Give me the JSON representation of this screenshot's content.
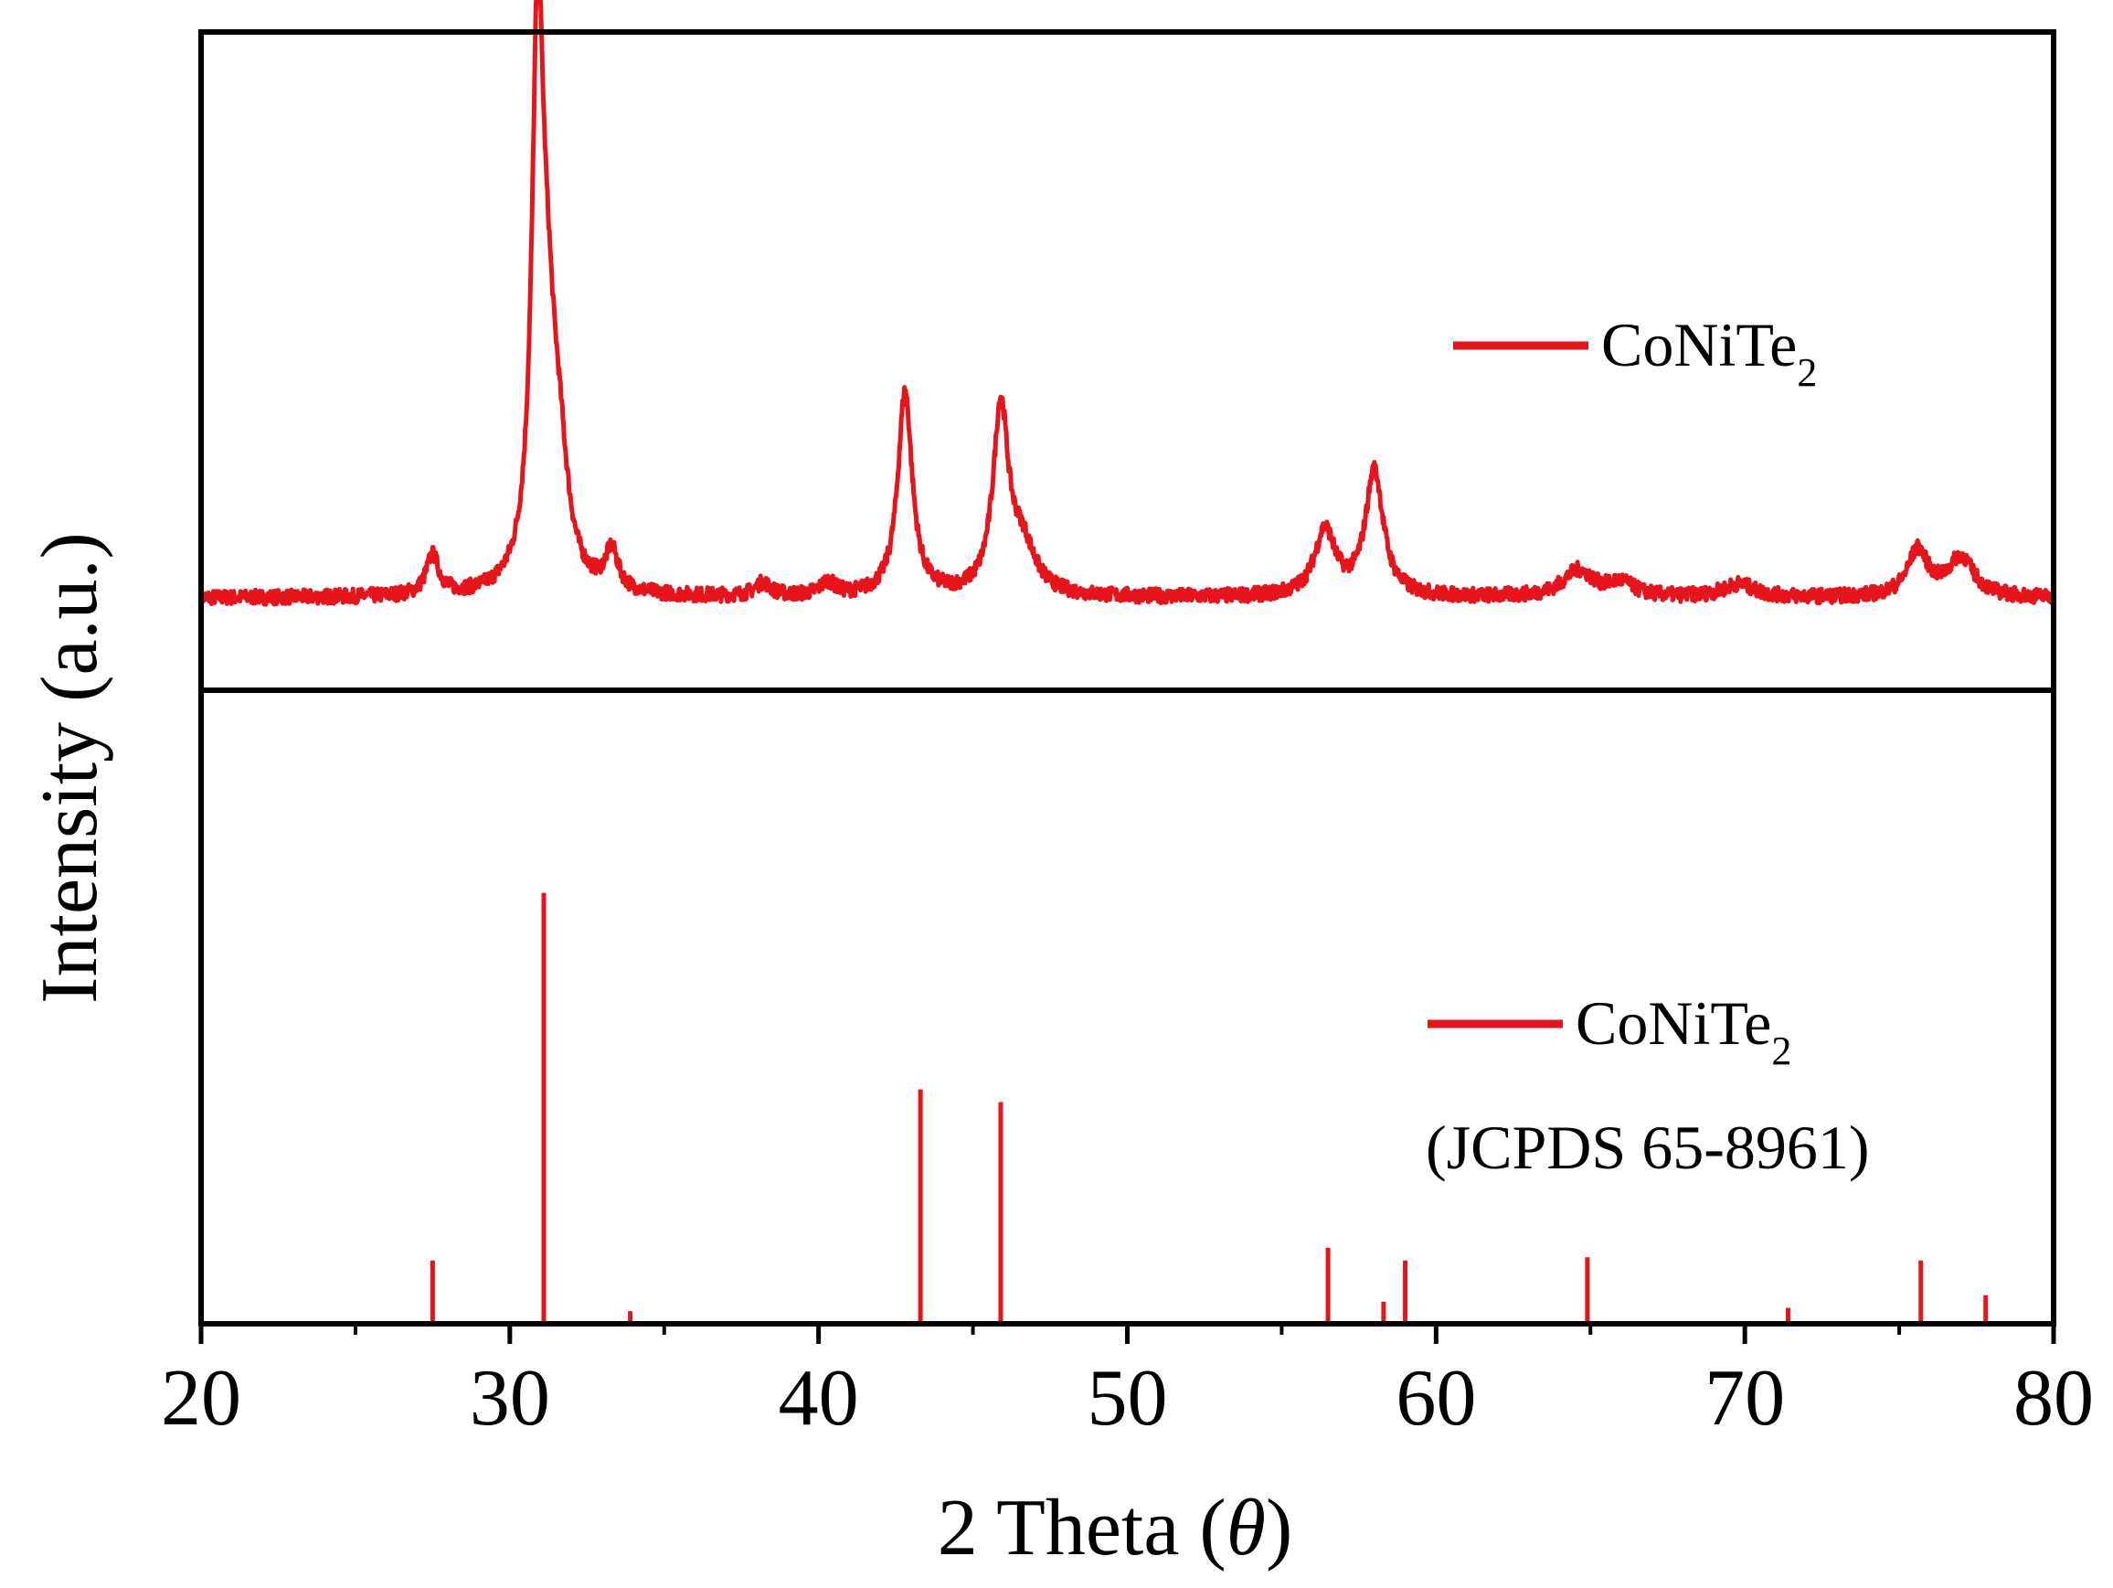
{
  "chart_data": {
    "type": "line",
    "xlabel_prefix": "2 Theta (",
    "xlabel_symbol": "θ",
    "xlabel_suffix": ")",
    "ylabel": "Intensity (a.u.)",
    "xlim": [
      20,
      80
    ],
    "x_ticks": [
      "20",
      "30",
      "40",
      "50",
      "60",
      "70",
      "80"
    ],
    "grid": false,
    "legend_placement": "top-right",
    "series_color": "#e8141c",
    "panels": [
      {
        "kind": "pattern",
        "legend": {
          "main": "CoNiTe",
          "sub": "2"
        },
        "baseline": 0.14,
        "peaks": [
          {
            "x": 27.5,
            "height": 0.06,
            "width": 0.25
          },
          {
            "x": 30.9,
            "height": 0.76,
            "width": 0.22
          },
          {
            "x": 31.2,
            "height": 0.3,
            "width": 0.35
          },
          {
            "x": 31.6,
            "height": 0.14,
            "width": 0.35
          },
          {
            "x": 33.3,
            "height": 0.06,
            "width": 0.25
          },
          {
            "x": 38.2,
            "height": 0.02,
            "width": 0.3
          },
          {
            "x": 40.3,
            "height": 0.02,
            "width": 0.3
          },
          {
            "x": 42.8,
            "height": 0.31,
            "width": 0.28
          },
          {
            "x": 45.9,
            "height": 0.28,
            "width": 0.3
          },
          {
            "x": 46.6,
            "height": 0.07,
            "width": 0.5
          },
          {
            "x": 56.4,
            "height": 0.1,
            "width": 0.4
          },
          {
            "x": 58.0,
            "height": 0.19,
            "width": 0.35
          },
          {
            "x": 64.6,
            "height": 0.04,
            "width": 0.6
          },
          {
            "x": 66.0,
            "height": 0.02,
            "width": 0.5
          },
          {
            "x": 69.8,
            "height": 0.02,
            "width": 0.6
          },
          {
            "x": 75.6,
            "height": 0.07,
            "width": 0.4
          },
          {
            "x": 77.0,
            "height": 0.06,
            "width": 0.5
          }
        ]
      },
      {
        "kind": "reference",
        "legend": {
          "main": "CoNiTe",
          "sub": "2",
          "note": "(JCPDS 65-8961)"
        },
        "sticks": [
          {
            "x": 27.5,
            "intensity": 10
          },
          {
            "x": 31.1,
            "intensity": 68
          },
          {
            "x": 33.9,
            "intensity": 2
          },
          {
            "x": 43.3,
            "intensity": 37
          },
          {
            "x": 45.9,
            "intensity": 35
          },
          {
            "x": 56.5,
            "intensity": 12
          },
          {
            "x": 58.3,
            "intensity": 3.5
          },
          {
            "x": 59.0,
            "intensity": 10
          },
          {
            "x": 64.9,
            "intensity": 10.5
          },
          {
            "x": 71.4,
            "intensity": 2.5
          },
          {
            "x": 75.7,
            "intensity": 10
          },
          {
            "x": 77.8,
            "intensity": 4.5
          }
        ]
      }
    ]
  }
}
